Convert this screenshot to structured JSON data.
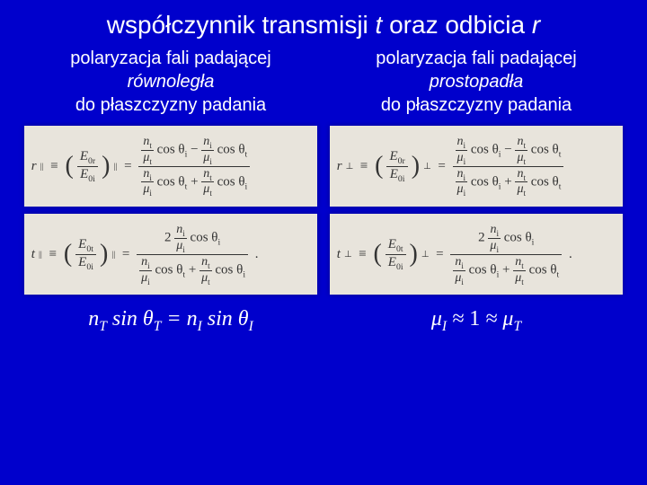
{
  "title": {
    "prefix": "współczynnik transmisji ",
    "t": "t",
    "mid": " oraz odbicia ",
    "r": "r"
  },
  "left": {
    "h1": "polaryzacja fali padającej",
    "h2": "równoległa",
    "h3": "do płaszczyzny padania",
    "r_lhs": "r",
    "r_sub": "||",
    "t_lhs": "t",
    "t_sub": "||",
    "ratio_r_num": "E",
    "ratio_r_num_sub": "0r",
    "ratio_r_den": "E",
    "ratio_r_den_sub": "0i",
    "ratio_t_num": "E",
    "ratio_t_num_sub": "0t",
    "ratio_t_den": "E",
    "ratio_t_den_sub": "0i",
    "nt": "n",
    "nt_s": "t",
    "ni": "n",
    "ni_s": "i",
    "mut": "μ",
    "mut_s": "t",
    "mui": "μ",
    "mui_s": "i",
    "costi": "cos θ",
    "costi_s": "i",
    "costt": "cos θ",
    "costt_s": "t",
    "two": "2",
    "bottom_eq": "n",
    "bottom_T": "T",
    "bottom_sin": " sin ",
    "bottom_theta": "θ",
    "bottom_eq_sign": " = ",
    "bottom_I": "I"
  },
  "right": {
    "h1": "polaryzacja fali padającej",
    "h2": "prostopadła",
    "h3": "do płaszczyzny padania",
    "r_sub": "⊥",
    "t_sub": "⊥",
    "bottom_mu": "μ",
    "bottom_I": "I",
    "bottom_approx": " ≈ ",
    "bottom_one": "1",
    "bottom_T": "T"
  },
  "colors": {
    "bg": "#0000cc",
    "eq_bg": "#e8e4dc",
    "text": "#ffffff"
  }
}
